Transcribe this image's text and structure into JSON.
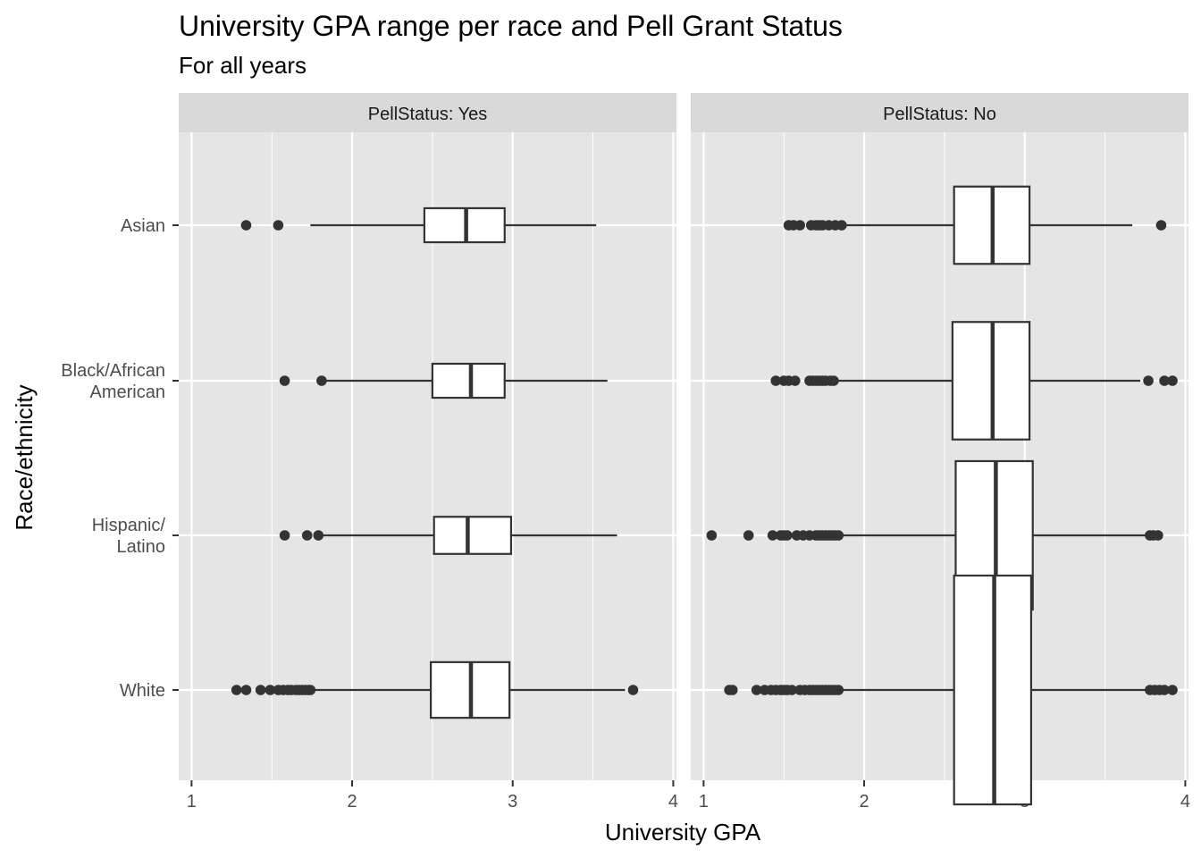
{
  "chart_data": {
    "type": "boxplot",
    "title": "University GPA range per race and Pell Grant Status",
    "subtitle": "For all years",
    "xlabel": "University GPA",
    "ylabel": "Race/ethnicity",
    "xlim": [
      0.92,
      4.02
    ],
    "xticks": [
      1,
      2,
      3,
      4
    ],
    "grid": true,
    "categories": [
      {
        "label_lines": [
          "Asian"
        ]
      },
      {
        "label_lines": [
          "Black/African",
          "American"
        ]
      },
      {
        "label_lines": [
          "Hispanic/",
          "Latino"
        ]
      },
      {
        "label_lines": [
          "White"
        ]
      }
    ],
    "facets": [
      {
        "strip": "PellStatus: Yes",
        "boxes": [
          {
            "whisker_low": 1.74,
            "q1": 2.45,
            "median": 2.71,
            "q3": 2.95,
            "whisker_high": 3.52,
            "width": 0.22,
            "outliers": [
              1.34,
              1.54
            ]
          },
          {
            "whisker_low": 1.82,
            "q1": 2.5,
            "median": 2.74,
            "q3": 2.95,
            "whisker_high": 3.59,
            "width": 0.22,
            "outliers": [
              1.58,
              1.81
            ]
          },
          {
            "whisker_low": 1.8,
            "q1": 2.51,
            "median": 2.72,
            "q3": 2.99,
            "whisker_high": 3.65,
            "width": 0.24,
            "outliers": [
              1.58,
              1.72,
              1.79
            ]
          },
          {
            "whisker_low": 1.75,
            "q1": 2.49,
            "median": 2.74,
            "q3": 2.98,
            "whisker_high": 3.7,
            "width": 0.36,
            "outliers": [
              1.28,
              1.34,
              1.43,
              1.49,
              1.54,
              1.57,
              1.6,
              1.62,
              1.65,
              1.67,
              1.69,
              1.71,
              1.73,
              1.74,
              3.75
            ]
          }
        ]
      },
      {
        "strip": "PellStatus: No",
        "boxes": [
          {
            "whisker_low": 1.87,
            "q1": 2.56,
            "median": 2.8,
            "q3": 3.03,
            "whisker_high": 3.67,
            "width": 0.5,
            "outliers": [
              1.53,
              1.56,
              1.6,
              1.67,
              1.7,
              1.72,
              1.74,
              1.78,
              1.82,
              1.86,
              3.85
            ]
          },
          {
            "whisker_low": 1.82,
            "q1": 2.55,
            "median": 2.8,
            "q3": 3.03,
            "whisker_high": 3.72,
            "width": 0.76,
            "outliers": [
              1.45,
              1.5,
              1.53,
              1.57,
              1.66,
              1.68,
              1.7,
              1.72,
              1.74,
              1.76,
              1.79,
              1.81,
              3.77,
              3.87,
              3.92
            ]
          },
          {
            "whisker_low": 1.85,
            "q1": 2.57,
            "median": 2.82,
            "q3": 3.05,
            "whisker_high": 3.77,
            "width": 0.96,
            "outliers": [
              1.05,
              1.28,
              1.43,
              1.48,
              1.5,
              1.52,
              1.58,
              1.62,
              1.66,
              1.7,
              1.72,
              1.74,
              1.76,
              1.78,
              1.8,
              1.82,
              1.84,
              3.78,
              3.8,
              3.83
            ]
          },
          {
            "whisker_low": 1.84,
            "q1": 2.56,
            "median": 2.81,
            "q3": 3.04,
            "whisker_high": 3.77,
            "width": 1.48,
            "outliers": [
              1.16,
              1.18,
              1.33,
              1.38,
              1.42,
              1.45,
              1.48,
              1.5,
              1.52,
              1.55,
              1.6,
              1.63,
              1.66,
              1.68,
              1.7,
              1.72,
              1.74,
              1.76,
              1.78,
              1.8,
              1.82,
              1.84,
              3.78,
              3.81,
              3.84,
              3.87,
              3.92
            ]
          }
        ]
      }
    ]
  },
  "colors": {
    "panel_background": "#e5e5e5",
    "strip_background": "#d9d9d9",
    "grid": "#ffffff",
    "box_fill": "#ffffff",
    "box_line": "#333333",
    "point": "#333333",
    "tick_text": "#4d4d4d"
  }
}
